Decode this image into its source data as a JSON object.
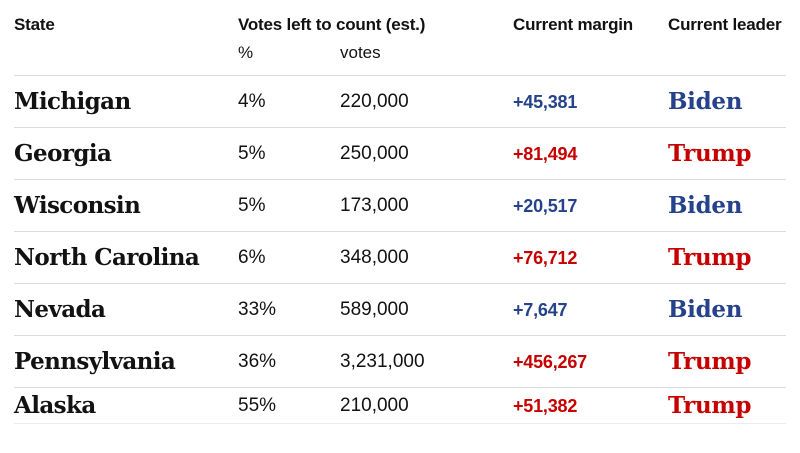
{
  "chart_data": {
    "type": "table",
    "header": {
      "state": "State",
      "votes_left_group": "Votes left to count (est.)",
      "pct": "%",
      "votes": "votes",
      "margin": "Current margin",
      "leader": "Current leader"
    },
    "rows": [
      {
        "state": "Michigan",
        "pct": "4%",
        "votes": "220,000",
        "margin": "+45,381",
        "leader": "Biden",
        "party": "dem"
      },
      {
        "state": "Georgia",
        "pct": "5%",
        "votes": "250,000",
        "margin": "+81,494",
        "leader": "Trump",
        "party": "rep"
      },
      {
        "state": "Wisconsin",
        "pct": "5%",
        "votes": "173,000",
        "margin": "+20,517",
        "leader": "Biden",
        "party": "dem"
      },
      {
        "state": "North Carolina",
        "pct": "6%",
        "votes": "348,000",
        "margin": "+76,712",
        "leader": "Trump",
        "party": "rep"
      },
      {
        "state": "Nevada",
        "pct": "33%",
        "votes": "589,000",
        "margin": "+7,647",
        "leader": "Biden",
        "party": "dem"
      },
      {
        "state": "Pennsylvania",
        "pct": "36%",
        "votes": "3,231,000",
        "margin": "+456,267",
        "leader": "Trump",
        "party": "rep"
      },
      {
        "state": "Alaska",
        "pct": "55%",
        "votes": "210,000",
        "margin": "+51,382",
        "leader": "Trump",
        "party": "rep"
      }
    ],
    "colors": {
      "dem": "#25428b",
      "rep": "#c70000",
      "text": "#121212",
      "divider": "#dcdcdc"
    },
    "layout": {
      "grid": "off",
      "legend": "none"
    }
  }
}
